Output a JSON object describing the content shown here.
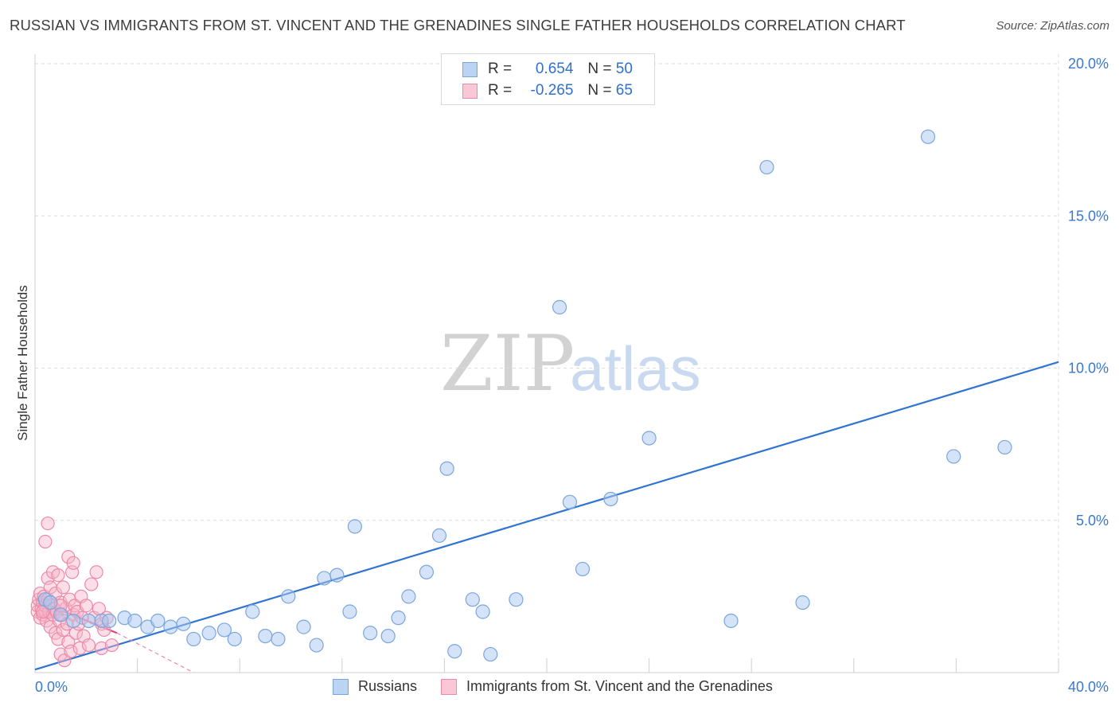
{
  "title": "RUSSIAN VS IMMIGRANTS FROM ST. VINCENT AND THE GRENADINES SINGLE FATHER HOUSEHOLDS CORRELATION CHART",
  "source": "Source: ZipAtlas.com",
  "watermark": {
    "zip": "ZIP",
    "atlas": "atlas"
  },
  "legend": {
    "rows": [
      {
        "r_label": "R =",
        "r_value": "0.654",
        "n_label": "N =",
        "n_value": "50"
      },
      {
        "r_label": "R =",
        "r_value": "-0.265",
        "n_label": "N =",
        "n_value": "65"
      }
    ]
  },
  "bottom_legend": {
    "series_a": "Russians",
    "series_b": "Immigrants from St. Vincent and the Grenadines"
  },
  "colors": {
    "blue_fill": "#a9c8f0",
    "blue_stroke": "#7aa6de",
    "blue_line": "#2f74d0",
    "pink_fill": "#f7b6c9",
    "pink_stroke": "#ec8aa8",
    "pink_line": "#e0457a",
    "grid": "#dcdcdc",
    "axis_text": "#3a78d0"
  },
  "chart_data": {
    "type": "scatter",
    "title": "RUSSIAN VS IMMIGRANTS FROM ST. VINCENT AND THE GRENADINES SINGLE FATHER HOUSEHOLDS CORRELATION CHART",
    "xlabel": "",
    "ylabel": "Single Father Households",
    "xlim": [
      0,
      40
    ],
    "ylim": [
      0,
      20.5
    ],
    "x_ticks": [
      {
        "value": 0,
        "label": "0.0%"
      },
      {
        "value": 40,
        "label": "40.0%"
      }
    ],
    "y_ticks": [
      {
        "value": 5,
        "label": "5.0%"
      },
      {
        "value": 10,
        "label": "10.0%"
      },
      {
        "value": 15,
        "label": "15.0%"
      },
      {
        "value": 20,
        "label": "20.0%"
      }
    ],
    "grid": true,
    "legend_position": "top-center",
    "series": [
      {
        "name": "Russians",
        "color": "#a9c8f0",
        "r": 0.654,
        "n": 50,
        "trend": {
          "x": [
            0,
            40
          ],
          "y": [
            0.1,
            10.2
          ]
        },
        "points": [
          [
            0.4,
            2.4
          ],
          [
            0.6,
            2.3
          ],
          [
            1.0,
            1.9
          ],
          [
            1.5,
            1.7
          ],
          [
            2.1,
            1.7
          ],
          [
            2.6,
            1.7
          ],
          [
            3.5,
            1.8
          ],
          [
            3.9,
            1.7
          ],
          [
            4.4,
            1.5
          ],
          [
            4.8,
            1.7
          ],
          [
            5.3,
            1.5
          ],
          [
            5.8,
            1.6
          ],
          [
            6.2,
            1.1
          ],
          [
            6.8,
            1.3
          ],
          [
            7.4,
            1.4
          ],
          [
            7.8,
            1.1
          ],
          [
            8.5,
            2.0
          ],
          [
            9.0,
            1.2
          ],
          [
            9.5,
            1.1
          ],
          [
            9.9,
            2.5
          ],
          [
            10.5,
            1.5
          ],
          [
            11.0,
            0.9
          ],
          [
            11.3,
            3.1
          ],
          [
            11.8,
            3.2
          ],
          [
            12.3,
            2.0
          ],
          [
            12.5,
            4.8
          ],
          [
            13.1,
            1.3
          ],
          [
            13.8,
            1.2
          ],
          [
            14.2,
            1.8
          ],
          [
            14.6,
            2.5
          ],
          [
            15.3,
            3.3
          ],
          [
            15.8,
            4.5
          ],
          [
            16.1,
            6.7
          ],
          [
            16.4,
            0.7
          ],
          [
            17.1,
            2.4
          ],
          [
            17.5,
            2.0
          ],
          [
            17.8,
            0.6
          ],
          [
            18.8,
            2.4
          ],
          [
            20.5,
            12.0
          ],
          [
            20.9,
            5.6
          ],
          [
            21.4,
            3.4
          ],
          [
            22.5,
            5.7
          ],
          [
            24.0,
            7.7
          ],
          [
            27.2,
            1.7
          ],
          [
            28.6,
            16.6
          ],
          [
            30.0,
            2.3
          ],
          [
            34.9,
            17.6
          ],
          [
            35.9,
            7.1
          ],
          [
            37.9,
            7.4
          ],
          [
            2.9,
            1.7
          ]
        ]
      },
      {
        "name": "Immigrants from St. Vincent and the Grenadines",
        "color": "#f7b6c9",
        "r": -0.265,
        "n": 65,
        "trend": {
          "x": [
            0,
            3.2
          ],
          "y": [
            2.4,
            1.3
          ]
        },
        "trend_extension": {
          "x": [
            3.2,
            6.2
          ],
          "y": [
            1.3,
            0.0
          ]
        },
        "points": [
          [
            0.1,
            2.0
          ],
          [
            0.1,
            2.2
          ],
          [
            0.15,
            2.4
          ],
          [
            0.2,
            1.8
          ],
          [
            0.2,
            2.6
          ],
          [
            0.25,
            2.1
          ],
          [
            0.3,
            2.3
          ],
          [
            0.3,
            1.9
          ],
          [
            0.35,
            2.5
          ],
          [
            0.4,
            2.0
          ],
          [
            0.4,
            2.2
          ],
          [
            0.45,
            1.7
          ],
          [
            0.5,
            2.4
          ],
          [
            0.5,
            3.1
          ],
          [
            0.55,
            2.0
          ],
          [
            0.6,
            1.5
          ],
          [
            0.6,
            2.8
          ],
          [
            0.65,
            2.2
          ],
          [
            0.7,
            1.9
          ],
          [
            0.7,
            3.3
          ],
          [
            0.75,
            2.1
          ],
          [
            0.8,
            1.3
          ],
          [
            0.8,
            2.6
          ],
          [
            0.85,
            2.0
          ],
          [
            0.9,
            1.1
          ],
          [
            0.9,
            3.2
          ],
          [
            0.95,
            1.7
          ],
          [
            1.0,
            2.3
          ],
          [
            1.0,
            0.6
          ],
          [
            1.05,
            1.9
          ],
          [
            1.1,
            1.4
          ],
          [
            1.1,
            2.8
          ],
          [
            1.15,
            0.4
          ],
          [
            1.2,
            2.1
          ],
          [
            1.25,
            1.6
          ],
          [
            1.3,
            3.8
          ],
          [
            1.3,
            1.0
          ],
          [
            1.35,
            2.4
          ],
          [
            1.4,
            0.7
          ],
          [
            1.45,
            3.3
          ],
          [
            1.5,
            1.9
          ],
          [
            1.5,
            3.6
          ],
          [
            1.55,
            2.2
          ],
          [
            1.6,
            1.3
          ],
          [
            1.65,
            2.0
          ],
          [
            1.7,
            1.6
          ],
          [
            1.75,
            0.8
          ],
          [
            1.8,
            2.5
          ],
          [
            1.85,
            1.8
          ],
          [
            1.9,
            1.2
          ],
          [
            2.0,
            2.2
          ],
          [
            2.1,
            0.9
          ],
          [
            2.2,
            2.9
          ],
          [
            2.3,
            1.8
          ],
          [
            2.4,
            3.3
          ],
          [
            2.5,
            2.1
          ],
          [
            2.6,
            1.6
          ],
          [
            2.7,
            1.4
          ],
          [
            2.8,
            1.8
          ],
          [
            2.6,
            0.8
          ],
          [
            3.0,
            0.9
          ],
          [
            0.4,
            4.3
          ],
          [
            0.5,
            4.9
          ],
          [
            0.3,
            2.0
          ],
          [
            1.0,
            2.2
          ]
        ]
      }
    ]
  }
}
